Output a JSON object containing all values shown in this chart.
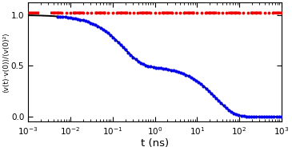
{
  "title": "",
  "xlabel": "t (ns)",
  "ylabel": "⟨v(t)·v(0)⟩/⟨v(0)²⟩",
  "ylim": [
    -0.05,
    1.12
  ],
  "yticks": [
    0.0,
    0.5,
    1.0
  ],
  "bg_color": "#ffffff",
  "line_black_color": "#000000",
  "dots_blue_color": "#0000ee",
  "dots_red_color": "#ee0000",
  "tau1": 0.18,
  "tau2": 28.0,
  "amp1": 0.5,
  "amp2": 0.5,
  "figsize": [
    3.65,
    1.89
  ],
  "dpi": 100
}
